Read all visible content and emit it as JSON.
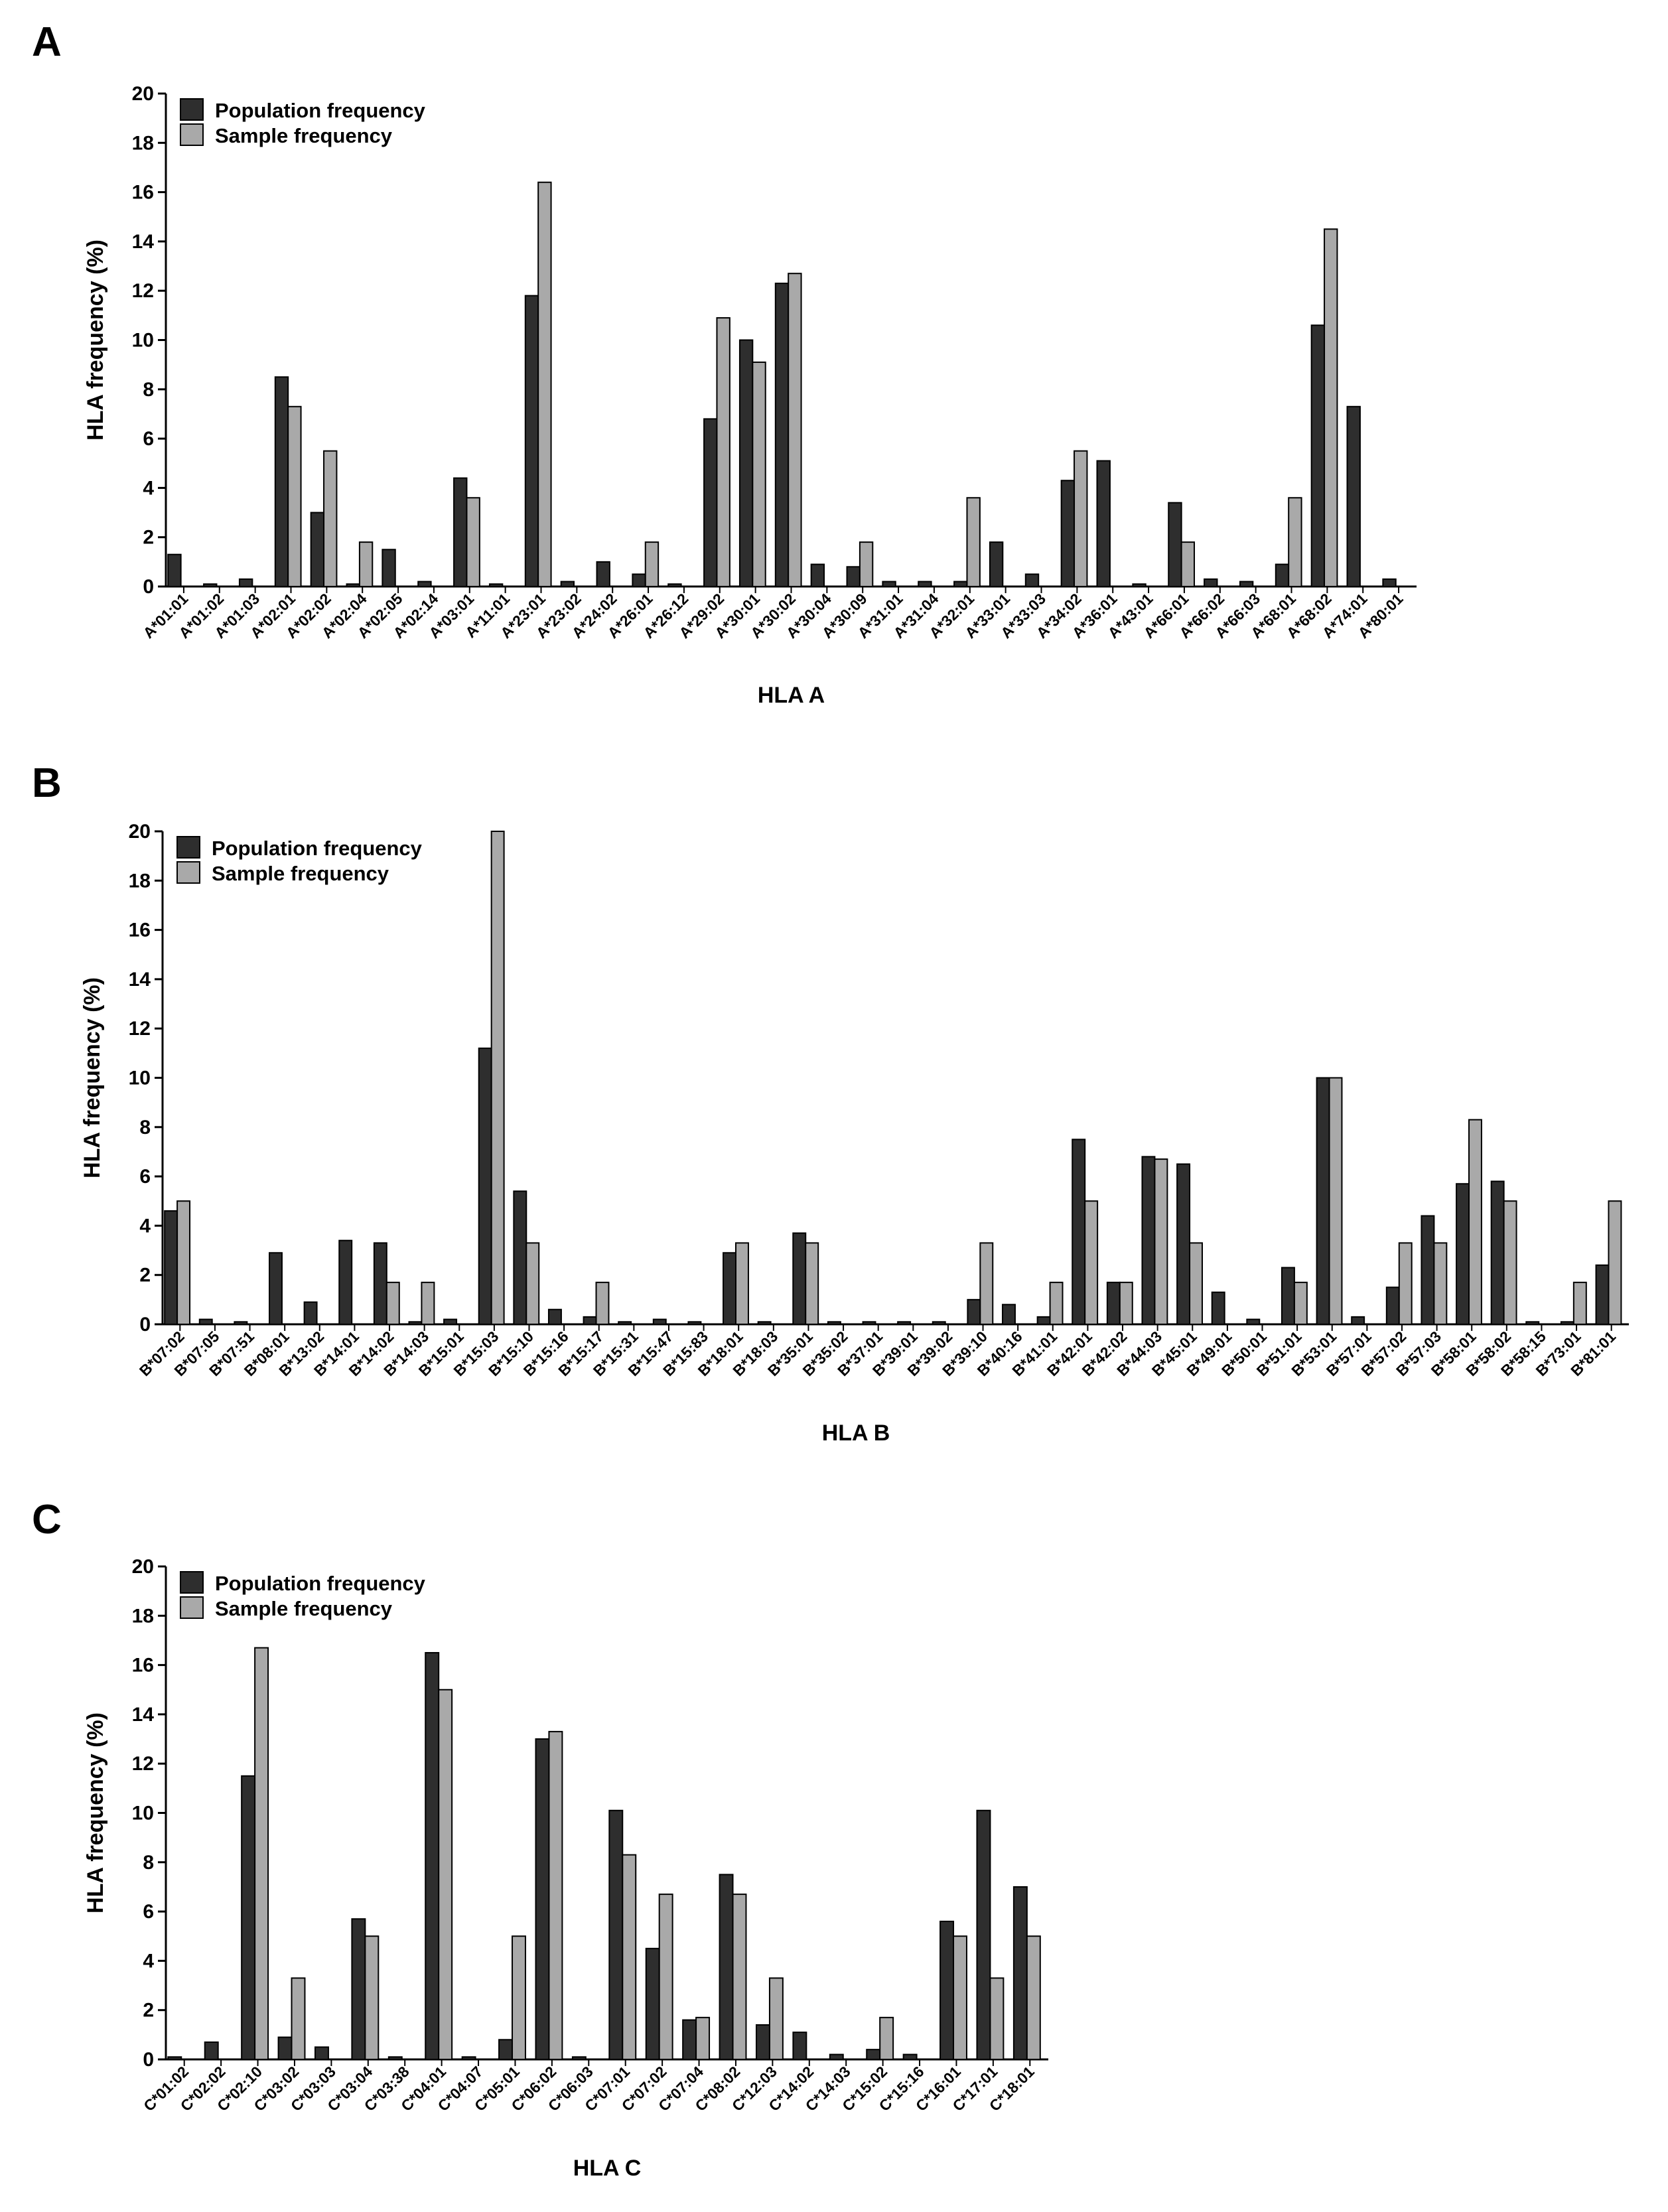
{
  "panels": [
    "A",
    "B",
    "C"
  ],
  "colors": {
    "population": "#2e2e2e",
    "sample": "#a9a9a9"
  },
  "chart_data": [
    {
      "type": "bar",
      "panel": "A",
      "xlabel": "HLA A",
      "ylabel": "HLA frequency (%)",
      "ylim": [
        0,
        20
      ],
      "yticks": [
        0,
        2,
        4,
        6,
        8,
        10,
        12,
        14,
        16,
        18,
        20
      ],
      "legend": "top-left",
      "categories": [
        "A*01:01",
        "A*01:02",
        "A*01:03",
        "A*02:01",
        "A*02:02",
        "A*02:04",
        "A*02:05",
        "A*02:14",
        "A*03:01",
        "A*11:01",
        "A*23:01",
        "A*23:02",
        "A*24:02",
        "A*26:01",
        "A*26:12",
        "A*29:02",
        "A*30:01",
        "A*30:02",
        "A*30:04",
        "A*30:09",
        "A*31:01",
        "A*31:04",
        "A*32:01",
        "A*33:01",
        "A*33:03",
        "A*34:02",
        "A*36:01",
        "A*43:01",
        "A*66:01",
        "A*66:02",
        "A*66:03",
        "A*68:01",
        "A*68:02",
        "A*74:01",
        "A*80:01"
      ],
      "series": [
        {
          "name": "Population frequency",
          "values": [
            1.3,
            0.1,
            0.3,
            8.5,
            3.0,
            0.1,
            1.5,
            0.2,
            4.4,
            0.1,
            11.8,
            0.2,
            1.0,
            0.5,
            0.1,
            6.8,
            10.0,
            12.3,
            0.9,
            0.8,
            0.2,
            0.2,
            0.2,
            1.8,
            0.5,
            4.3,
            5.1,
            0.1,
            3.4,
            0.3,
            0.2,
            0.9,
            10.6,
            7.3,
            0.3
          ]
        },
        {
          "name": "Sample frequency",
          "values": [
            0,
            0,
            0,
            7.3,
            5.5,
            1.8,
            0,
            0,
            3.6,
            0,
            16.4,
            0,
            0,
            1.8,
            0,
            10.9,
            9.1,
            12.7,
            0,
            1.8,
            0,
            0,
            3.6,
            0,
            0,
            5.5,
            0,
            0,
            1.8,
            0,
            0,
            3.6,
            14.5,
            0,
            0
          ]
        }
      ]
    },
    {
      "type": "bar",
      "panel": "B",
      "xlabel": "HLA B",
      "ylabel": "HLA frequency (%)",
      "ylim": [
        0,
        20
      ],
      "yticks": [
        0,
        2,
        4,
        6,
        8,
        10,
        12,
        14,
        16,
        18,
        20
      ],
      "legend": "top-left",
      "categories": [
        "B*07:02",
        "B*07:05",
        "B*07:51",
        "B*08:01",
        "B*13:02",
        "B*14:01",
        "B*14:02",
        "B*14:03",
        "B*15:01",
        "B*15:03",
        "B*15:10",
        "B*15:16",
        "B*15:17",
        "B*15:31",
        "B*15:47",
        "B*15:83",
        "B*18:01",
        "B*18:03",
        "B*35:01",
        "B*35:02",
        "B*37:01",
        "B*39:01",
        "B*39:02",
        "B*39:10",
        "B*40:16",
        "B*41:01",
        "B*42:01",
        "B*42:02",
        "B*44:03",
        "B*45:01",
        "B*49:01",
        "B*50:01",
        "B*51:01",
        "B*53:01",
        "B*57:01",
        "B*57:02",
        "B*57:03",
        "B*58:01",
        "B*58:02",
        "B*58:15",
        "B*73:01",
        "B*81:01"
      ],
      "series": [
        {
          "name": "Population frequency",
          "values": [
            4.6,
            0.2,
            0.1,
            2.9,
            0.9,
            3.4,
            3.3,
            0.1,
            0.2,
            11.2,
            5.4,
            0.6,
            0.3,
            0.1,
            0.2,
            0.1,
            2.9,
            0.1,
            3.7,
            0.1,
            0.1,
            0.1,
            0.1,
            1.0,
            0.8,
            0.3,
            7.5,
            1.7,
            6.8,
            6.5,
            1.3,
            0.2,
            2.3,
            10.0,
            0.3,
            1.5,
            4.4,
            5.7,
            5.8,
            0.1,
            0.1,
            2.4
          ]
        },
        {
          "name": "Sample frequency",
          "values": [
            5.0,
            0,
            0,
            0,
            0,
            0,
            1.7,
            1.7,
            0,
            20.0,
            3.3,
            0,
            1.7,
            0,
            0,
            0,
            3.3,
            0,
            3.3,
            0,
            0,
            0,
            0,
            3.3,
            0,
            1.7,
            5.0,
            1.7,
            6.7,
            3.3,
            0,
            0,
            1.7,
            10.0,
            0,
            3.3,
            3.3,
            8.3,
            5.0,
            0,
            1.7,
            5.0
          ]
        }
      ]
    },
    {
      "type": "bar",
      "panel": "C",
      "xlabel": "HLA C",
      "ylabel": "HLA frequency (%)",
      "ylim": [
        0,
        20
      ],
      "yticks": [
        0,
        2,
        4,
        6,
        8,
        10,
        12,
        14,
        16,
        18,
        20
      ],
      "legend": "top-left",
      "categories": [
        "C*01:02",
        "C*02:02",
        "C*02:10",
        "C*03:02",
        "C*03:03",
        "C*03:04",
        "C*03:38",
        "C*04:01",
        "C*04:07",
        "C*05:01",
        "C*06:02",
        "C*06:03",
        "C*07:01",
        "C*07:02",
        "C*07:04",
        "C*08:02",
        "C*12:03",
        "C*14:02",
        "C*14:03",
        "C*15:02",
        "C*15:16",
        "C*16:01",
        "C*17:01",
        "C*18:01"
      ],
      "series": [
        {
          "name": "Population frequency",
          "values": [
            0.1,
            0.7,
            11.5,
            0.9,
            0.5,
            5.7,
            0.1,
            16.5,
            0.1,
            0.8,
            13.0,
            0.1,
            10.1,
            4.5,
            1.6,
            7.5,
            1.4,
            1.1,
            0.2,
            0.4,
            0.2,
            5.6,
            10.1,
            7.0
          ]
        },
        {
          "name": "Sample frequency",
          "values": [
            0,
            0,
            16.7,
            3.3,
            0,
            5.0,
            0,
            15.0,
            0,
            5.0,
            13.3,
            0,
            8.3,
            6.7,
            1.7,
            6.7,
            3.3,
            0,
            0,
            1.7,
            0,
            5.0,
            3.3,
            5.0
          ]
        }
      ]
    }
  ]
}
